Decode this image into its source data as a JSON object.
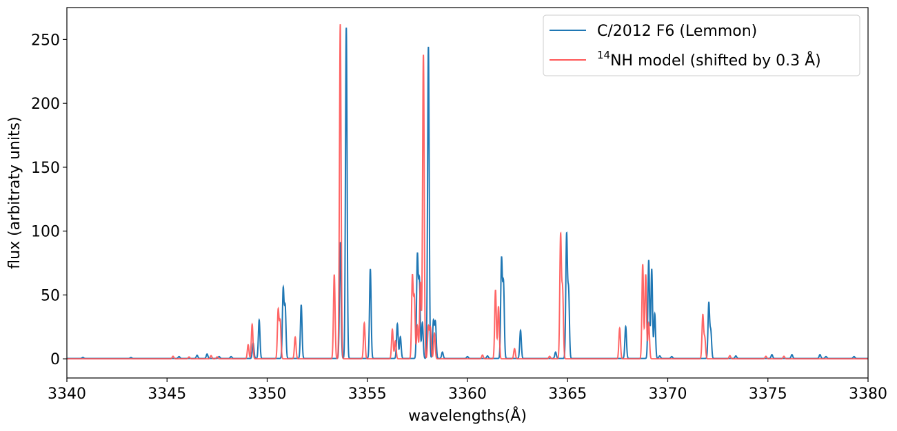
{
  "chart_data": {
    "type": "line",
    "title": "",
    "xlabel": "wavelengths(Å)",
    "ylabel": "flux (arbitraty units)",
    "xlim": [
      3340,
      3380
    ],
    "ylim": [
      -15,
      275
    ],
    "xticks": [
      3340,
      3345,
      3350,
      3355,
      3360,
      3365,
      3370,
      3375,
      3380
    ],
    "yticks": [
      0,
      50,
      100,
      150,
      200,
      250
    ],
    "legend_position": "top-right",
    "grid": false,
    "peak_width": 0.04,
    "series": [
      {
        "name": "C/2012 F6 (Lemmon)",
        "color": "#1f77b4",
        "baseline": 0.3,
        "peaks": [
          [
            3340.8,
            0.8
          ],
          [
            3343.2,
            0.7
          ],
          [
            3345.6,
            1.5
          ],
          [
            3346.5,
            2.5
          ],
          [
            3347.0,
            3.5
          ],
          [
            3347.6,
            1.5
          ],
          [
            3348.2,
            1.5
          ],
          [
            3349.3,
            12
          ],
          [
            3349.6,
            30
          ],
          [
            3350.8,
            54
          ],
          [
            3350.9,
            40
          ],
          [
            3351.7,
            42
          ],
          [
            3353.65,
            91
          ],
          [
            3353.95,
            259
          ],
          [
            3355.15,
            70
          ],
          [
            3356.5,
            27
          ],
          [
            3356.65,
            17
          ],
          [
            3357.5,
            80
          ],
          [
            3357.6,
            60
          ],
          [
            3357.75,
            28
          ],
          [
            3358.05,
            244
          ],
          [
            3358.3,
            29
          ],
          [
            3358.4,
            28
          ],
          [
            3358.75,
            5
          ],
          [
            3360.0,
            1.5
          ],
          [
            3361.0,
            2
          ],
          [
            3361.7,
            77
          ],
          [
            3361.8,
            58
          ],
          [
            3362.65,
            22
          ],
          [
            3364.4,
            5
          ],
          [
            3364.95,
            96
          ],
          [
            3365.05,
            52
          ],
          [
            3367.9,
            25
          ],
          [
            3369.05,
            77
          ],
          [
            3369.2,
            70
          ],
          [
            3369.35,
            35
          ],
          [
            3369.6,
            2
          ],
          [
            3370.2,
            1.5
          ],
          [
            3372.05,
            43
          ],
          [
            3372.15,
            21
          ],
          [
            3373.4,
            2
          ],
          [
            3375.2,
            3
          ],
          [
            3376.2,
            3
          ],
          [
            3377.6,
            3
          ],
          [
            3377.9,
            1.5
          ],
          [
            3379.3,
            1.5
          ]
        ]
      },
      {
        "name": "NH model (shifted by 0.3 Å)",
        "color": "#ff5555",
        "baseline": 0,
        "peaks": [
          [
            3345.3,
            2
          ],
          [
            3346.1,
            1.5
          ],
          [
            3347.2,
            2.5
          ],
          [
            3347.5,
            1.5
          ],
          [
            3349.05,
            11
          ],
          [
            3349.25,
            27
          ],
          [
            3350.55,
            38
          ],
          [
            3350.65,
            29
          ],
          [
            3351.4,
            17
          ],
          [
            3353.35,
            66
          ],
          [
            3353.65,
            262
          ],
          [
            3354.85,
            28
          ],
          [
            3356.25,
            23
          ],
          [
            3356.4,
            14
          ],
          [
            3357.25,
            64
          ],
          [
            3357.35,
            47
          ],
          [
            3357.5,
            26
          ],
          [
            3357.65,
            60
          ],
          [
            3357.8,
            238
          ],
          [
            3358.05,
            25
          ],
          [
            3358.15,
            24
          ],
          [
            3358.35,
            20
          ],
          [
            3360.75,
            3
          ],
          [
            3361.4,
            54
          ],
          [
            3361.55,
            41
          ],
          [
            3362.35,
            8
          ],
          [
            3364.1,
            2
          ],
          [
            3364.65,
            96
          ],
          [
            3364.75,
            53
          ],
          [
            3367.6,
            24
          ],
          [
            3368.75,
            74
          ],
          [
            3368.9,
            66
          ],
          [
            3369.05,
            28
          ],
          [
            3371.75,
            34
          ],
          [
            3371.85,
            16
          ],
          [
            3373.1,
            2.5
          ],
          [
            3374.9,
            2
          ],
          [
            3375.8,
            2
          ]
        ]
      }
    ]
  },
  "legend": {
    "entries": [
      {
        "label": "C/2012 F6 (Lemmon)"
      },
      {
        "sup": "14",
        "label": "NH model (shifted by 0.3 Å)"
      }
    ]
  }
}
